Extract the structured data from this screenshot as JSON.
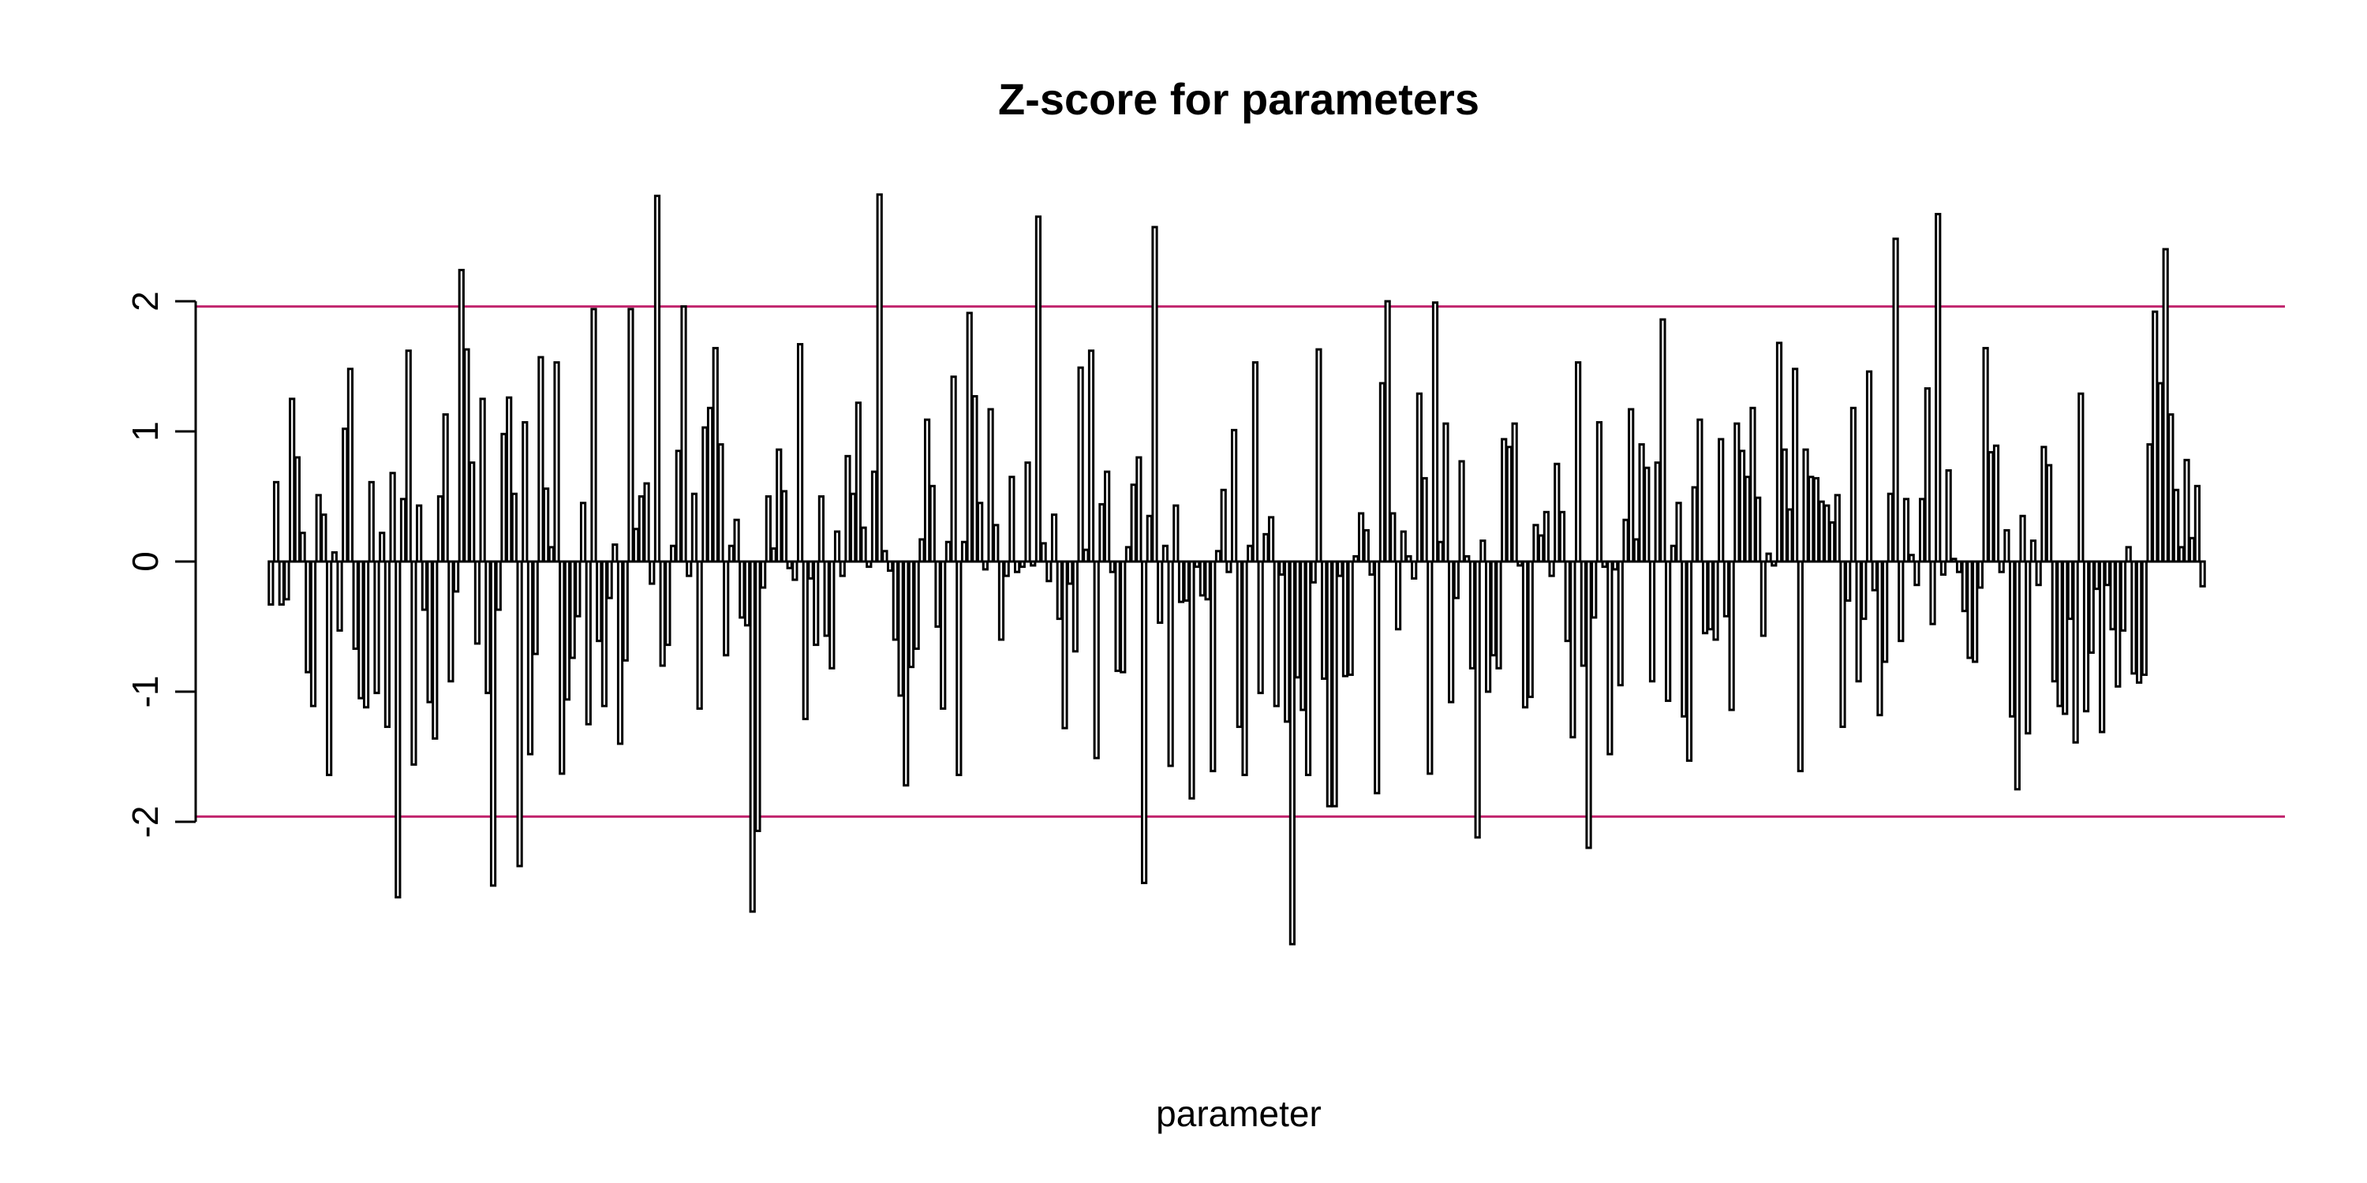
{
  "chart_data": {
    "type": "bar",
    "title": "Z-score for parameters",
    "xlabel": "parameter",
    "ylabel": "",
    "yticks": [
      "-2",
      "-1",
      "0",
      "1",
      "2"
    ],
    "ytick_values": [
      -2,
      -1,
      0,
      1,
      2
    ],
    "ylim": [
      -3.4,
      3.4
    ],
    "reference_lines": [
      1.96,
      -1.96
    ],
    "reference_line_color": "#c1246d",
    "bar_fill": "#ffffff",
    "bar_stroke": "#000000",
    "grid": false,
    "legend": "none",
    "values": [
      -0.33,
      0.61,
      -0.33,
      -0.29,
      1.25,
      0.8,
      0.22,
      -0.85,
      -1.11,
      0.51,
      0.36,
      -1.64,
      0.07,
      -0.53,
      1.02,
      1.48,
      -0.67,
      -1.05,
      -1.12,
      0.61,
      -1.01,
      0.22,
      -1.27,
      0.68,
      -2.58,
      0.48,
      1.62,
      -1.56,
      0.43,
      -0.37,
      -1.08,
      -1.36,
      0.5,
      1.13,
      -0.92,
      -0.23,
      2.24,
      1.63,
      0.76,
      -0.63,
      1.25,
      -1.01,
      -2.49,
      -0.37,
      0.98,
      1.26,
      0.52,
      -2.34,
      1.07,
      -1.48,
      -0.71,
      1.57,
      0.56,
      0.11,
      1.53,
      -1.63,
      -1.06,
      -0.74,
      -0.42,
      0.45,
      -1.25,
      1.94,
      -0.61,
      -1.11,
      -0.28,
      0.13,
      -1.4,
      -0.76,
      1.94,
      0.25,
      0.5,
      0.6,
      -0.17,
      2.81,
      -0.8,
      -0.64,
      0.12,
      0.85,
      1.96,
      -0.11,
      0.52,
      -1.13,
      1.03,
      1.18,
      1.64,
      0.9,
      -0.72,
      0.12,
      0.32,
      -0.43,
      -0.49,
      -2.69,
      -2.07,
      -0.2,
      0.5,
      0.1,
      0.86,
      0.54,
      -0.05,
      -0.14,
      1.67,
      -1.21,
      -0.13,
      -0.64,
      0.5,
      -0.57,
      -0.82,
      0.23,
      -0.11,
      0.81,
      0.52,
      1.22,
      0.26,
      -0.04,
      0.69,
      2.82,
      0.08,
      -0.07,
      -0.6,
      -1.03,
      -1.72,
      -0.81,
      -0.67,
      0.17,
      1.09,
      0.58,
      -0.5,
      -1.13,
      0.15,
      1.42,
      -1.64,
      0.15,
      1.91,
      1.27,
      0.45,
      -0.06,
      1.17,
      0.28,
      -0.6,
      -0.11,
      0.65,
      -0.08,
      -0.04,
      0.76,
      -0.03,
      2.65,
      0.14,
      -0.15,
      0.36,
      -0.44,
      -1.28,
      -0.17,
      -0.69,
      1.49,
      0.09,
      1.62,
      -1.51,
      0.44,
      0.69,
      -0.08,
      -0.84,
      -0.85,
      0.11,
      0.59,
      0.8,
      -2.47,
      0.35,
      2.57,
      -0.47,
      0.12,
      -1.57,
      0.43,
      -0.31,
      -0.3,
      -1.82,
      -0.04,
      -0.26,
      -0.29,
      -1.61,
      0.08,
      0.55,
      -0.08,
      1.01,
      -1.27,
      -1.64,
      0.12,
      1.53,
      -1.01,
      0.21,
      0.34,
      -1.11,
      -0.1,
      -1.23,
      -2.94,
      -0.89,
      -1.14,
      -1.64,
      -0.16,
      1.63,
      -0.9,
      -1.88,
      -1.88,
      -0.11,
      -0.88,
      -0.87,
      0.04,
      0.37,
      0.24,
      -0.1,
      -1.78,
      1.37,
      2.0,
      0.37,
      -0.52,
      0.23,
      0.04,
      -0.13,
      1.29,
      0.64,
      -1.63,
      1.99,
      0.15,
      1.06,
      -1.08,
      -0.28,
      0.77,
      0.04,
      -0.82,
      -2.12,
      0.16,
      -1.0,
      -0.72,
      -0.82,
      0.94,
      0.88,
      1.06,
      -0.03,
      -1.12,
      -1.04,
      0.28,
      0.2,
      0.38,
      -0.11,
      0.75,
      0.38,
      -0.61,
      -1.35,
      1.53,
      -0.8,
      -2.2,
      -0.43,
      1.07,
      -0.04,
      -1.48,
      -0.06,
      -0.95,
      0.32,
      1.17,
      0.17,
      0.9,
      0.72,
      -0.92,
      0.76,
      1.86,
      -1.07,
      0.12,
      0.45,
      -1.19,
      -1.53,
      0.57,
      1.09,
      -0.55,
      -0.52,
      -0.6,
      0.94,
      -0.42,
      -1.14,
      1.06,
      0.85,
      0.65,
      1.18,
      0.49,
      -0.57,
      0.06,
      -0.03,
      1.68,
      0.86,
      0.4,
      1.48,
      -1.61,
      0.86,
      0.65,
      0.64,
      0.46,
      0.43,
      0.3,
      0.51,
      -1.27,
      -0.3,
      1.18,
      -0.92,
      -0.44,
      1.46,
      -0.22,
      -1.18,
      -0.77,
      0.52,
      2.48,
      -0.61,
      0.48,
      0.05,
      -0.18,
      0.48,
      1.33,
      -0.48,
      2.67,
      -0.1,
      0.7,
      0.02,
      -0.08,
      -0.38,
      -0.74,
      -0.77,
      -0.2,
      1.64,
      0.84,
      0.89,
      -0.08,
      0.24,
      -1.19,
      -1.75,
      0.35,
      -1.32,
      0.16,
      -0.18,
      0.88,
      0.74,
      -0.92,
      -1.11,
      -1.17,
      -0.44,
      -1.39,
      1.29,
      -1.15,
      -0.7,
      -0.21,
      -1.31,
      -0.18,
      -0.52,
      -0.96,
      -0.53,
      0.11,
      -0.86,
      -0.93,
      -0.87,
      0.9,
      1.92,
      1.37,
      2.4,
      1.13,
      0.55,
      0.11,
      0.78,
      0.18,
      0.58,
      -0.19
    ]
  }
}
